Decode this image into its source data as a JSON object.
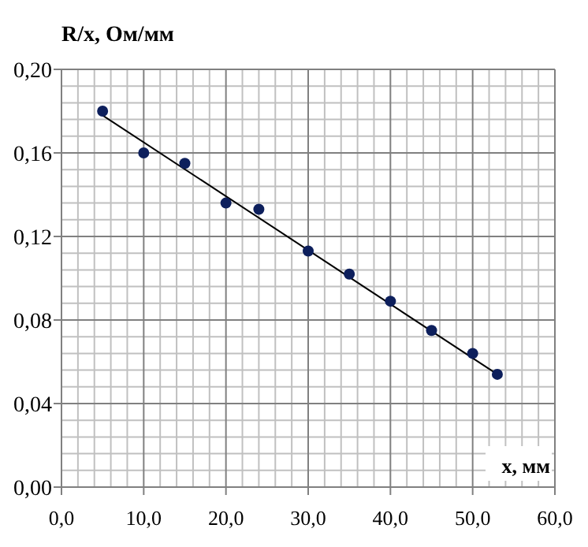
{
  "chart_data": {
    "type": "scatter",
    "ylabel": "R/x, Ом/мм",
    "xlabel": "x, мм",
    "xlim": [
      0,
      60
    ],
    "ylim": [
      0,
      0.2
    ],
    "xticks": [
      {
        "value": 0,
        "label": "0,0"
      },
      {
        "value": 10,
        "label": "10,0"
      },
      {
        "value": 20,
        "label": "20,0"
      },
      {
        "value": 30,
        "label": "30,0"
      },
      {
        "value": 40,
        "label": "40,0"
      },
      {
        "value": 50,
        "label": "50,0"
      },
      {
        "value": 60,
        "label": "60,0"
      }
    ],
    "yticks": [
      {
        "value": 0,
        "label": "0,00"
      },
      {
        "value": 0.04,
        "label": "0,04"
      },
      {
        "value": 0.08,
        "label": "0,08"
      },
      {
        "value": 0.12,
        "label": "0,12"
      },
      {
        "value": 0.16,
        "label": "0,16"
      },
      {
        "value": 0.2,
        "label": "0,20"
      }
    ],
    "grid": true,
    "marker": "circle",
    "series": [
      {
        "type": "line",
        "color": "#000000",
        "x": [
          5,
          53
        ],
        "values": [
          0.178,
          0.054
        ],
        "marker": "none"
      },
      {
        "color": "#0d1f5c",
        "x": [
          5,
          10,
          15,
          20,
          24,
          30,
          35,
          40,
          45,
          50,
          53
        ],
        "values": [
          0.18,
          0.16,
          0.155,
          0.136,
          0.133,
          0.113,
          0.102,
          0.089,
          0.075,
          0.064,
          0.054
        ]
      }
    ]
  }
}
